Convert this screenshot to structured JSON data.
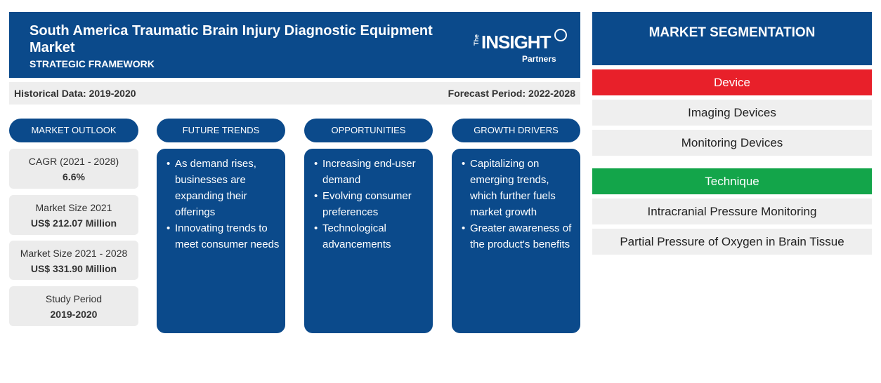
{
  "header": {
    "title": "South America Traumatic Brain Injury Diagnostic Equipment Market",
    "subtitle": "STRATEGIC FRAMEWORK",
    "logo": {
      "the": "The",
      "insight": "INSIGHT",
      "partners": "Partners"
    }
  },
  "periods": {
    "historical": "Historical Data: 2019-2020",
    "forecast": "Forecast Period: 2022-2028"
  },
  "sections": {
    "market_outlook": "MARKET OUTLOOK",
    "future_trends": "FUTURE TRENDS",
    "opportunities": "OPPORTUNITIES",
    "growth_drivers": "GROWTH DRIVERS"
  },
  "stats": [
    {
      "label": "CAGR (2021 - 2028)",
      "value": "6.6%"
    },
    {
      "label": "Market Size 2021",
      "value": "US$ 212.07 Million"
    },
    {
      "label": "Market Size 2021 - 2028",
      "value": "US$ 331.90 Million"
    },
    {
      "label": "Study Period",
      "value": "2019-2020"
    }
  ],
  "future_trends": [
    "As demand rises, businesses are expanding their offerings",
    "Innovating trends to meet consumer needs"
  ],
  "opportunities": [
    "Increasing end-user demand",
    "Evolving consumer preferences",
    "Technological advancements"
  ],
  "growth_drivers": [
    "Capitalizing on emerging trends, which further fuels market growth",
    "Greater awareness of the product's benefits"
  ],
  "segmentation": {
    "title": "MARKET SEGMENTATION",
    "groups": [
      {
        "name": "Device",
        "color": "#e8202a",
        "items": [
          "Imaging Devices",
          "Monitoring Devices"
        ]
      },
      {
        "name": "Technique",
        "color": "#13a54a",
        "items": [
          "Intracranial Pressure Monitoring",
          "Partial Pressure of Oxygen in Brain Tissue"
        ]
      }
    ]
  }
}
